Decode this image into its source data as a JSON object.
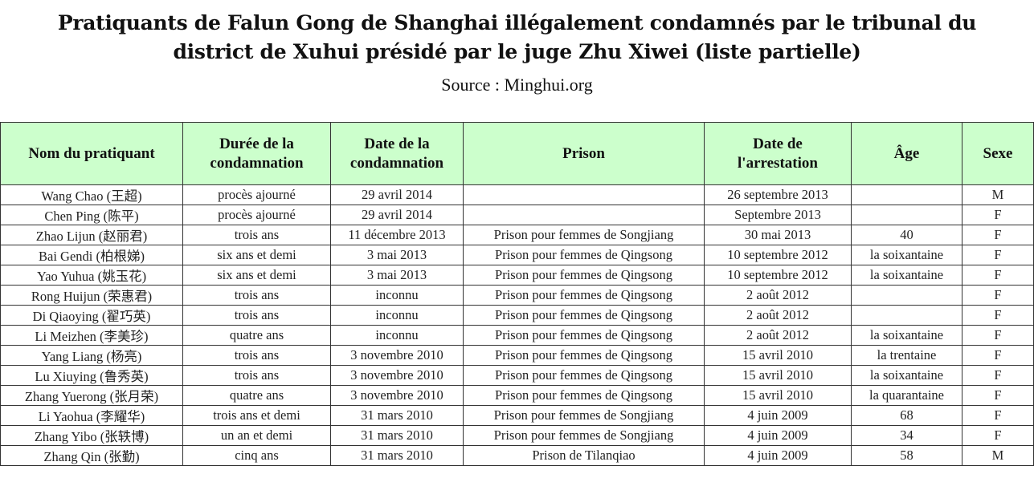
{
  "title": "Pratiquants de Falun Gong de Shanghai illégalement condamnés par le tribunal du district de Xuhui présidé par le juge Zhu Xiwei (liste partielle)",
  "source": "Source : Minghui.org",
  "columns": [
    "Nom du pratiquant",
    "Durée de la condamnation",
    "Date de la condamnation",
    "Prison",
    "Date de l'arrestation",
    "Âge",
    "Sexe"
  ],
  "rows": [
    [
      "Wang Chao (王超)",
      "procès ajourné",
      "29 avril 2014",
      "",
      "26 septembre 2013",
      "",
      "M"
    ],
    [
      "Chen Ping (陈平)",
      "procès ajourné",
      "29 avril 2014",
      "",
      "Septembre 2013",
      "",
      "F"
    ],
    [
      "Zhao Lijun (赵丽君)",
      "trois ans",
      "11 décembre 2013",
      "Prison pour femmes de Songjiang",
      "30 mai 2013",
      "40",
      "F"
    ],
    [
      "Bai Gendi (柏根娣)",
      "six ans et demi",
      "3 mai 2013",
      "Prison pour femmes de Qingsong",
      "10 septembre 2012",
      "la soixantaine",
      "F"
    ],
    [
      "Yao Yuhua (姚玉花)",
      "six ans et demi",
      "3 mai 2013",
      "Prison pour femmes de Qingsong",
      "10 septembre 2012",
      "la soixantaine",
      "F"
    ],
    [
      "Rong Huijun (荣惠君)",
      "trois ans",
      "inconnu",
      "Prison pour femmes de Qingsong",
      "2 août 2012",
      "",
      "F"
    ],
    [
      "Di Qiaoying (翟巧英)",
      "trois ans",
      "inconnu",
      "Prison pour femmes de Qingsong",
      "2 août 2012",
      "",
      "F"
    ],
    [
      "Li Meizhen (李美珍)",
      "quatre ans",
      "inconnu",
      "Prison pour femmes de Qingsong",
      "2 août 2012",
      "la soixantaine",
      "F"
    ],
    [
      "Yang Liang (杨亮)",
      "trois ans",
      "3 novembre 2010",
      "Prison pour femmes de Qingsong",
      "15 avril 2010",
      "la trentaine",
      "F"
    ],
    [
      "Lu Xiuying (鲁秀英)",
      "trois ans",
      "3 novembre 2010",
      "Prison pour femmes de Qingsong",
      "15 avril 2010",
      "la soixantaine",
      "F"
    ],
    [
      "Zhang Yuerong (张月荣)",
      "quatre ans",
      "3 novembre 2010",
      "Prison pour femmes de Qingsong",
      "15 avril 2010",
      "la quarantaine",
      "F"
    ],
    [
      "Li Yaohua (李耀华)",
      "trois ans et demi",
      "31 mars 2010",
      "Prison pour femmes de Songjiang",
      "4 juin 2009",
      "68",
      "F"
    ],
    [
      "Zhang Yibo (张轶博)",
      "un an et demi",
      "31 mars 2010",
      "Prison pour femmes de Songjiang",
      "4 juin 2009",
      "34",
      "F"
    ],
    [
      "Zhang Qin (张勤)",
      "cinq ans",
      "31 mars 2010",
      "Prison de Tilanqiao",
      "4 juin 2009",
      "58",
      "M"
    ]
  ]
}
